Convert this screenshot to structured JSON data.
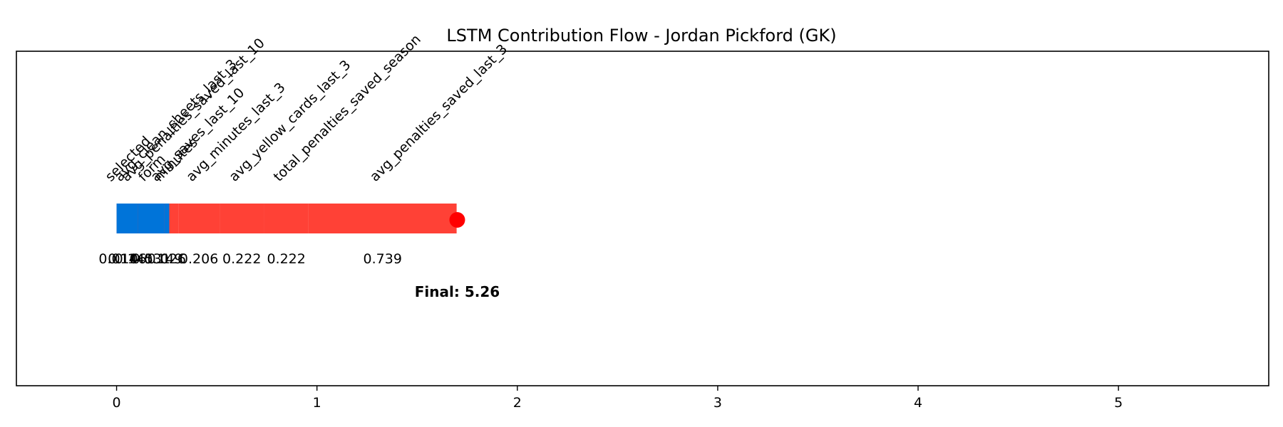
{
  "chart_data": {
    "type": "bar",
    "title": "LSTM Contribution Flow - Jordan Pickford (GK)",
    "xlim": [
      -0.5,
      5.75
    ],
    "x_ticks": [
      "0",
      "1",
      "2",
      "3",
      "4",
      "5"
    ],
    "xlabel": "",
    "ylabel": "",
    "grid": false,
    "segments": [
      {
        "feature": "avg_penalties_saved_last_3",
        "value": -0.739,
        "value_label": "0.739",
        "color": "#ff4136"
      },
      {
        "feature": "total_penalties_saved_season",
        "value": -0.222,
        "value_label": "0.222",
        "color": "#ff4136"
      },
      {
        "feature": "avg_yellow_cards_last_3",
        "value": -0.222,
        "value_label": "0.222",
        "color": "#ff4136"
      },
      {
        "feature": "avg_minutes_last_3",
        "value": -0.206,
        "value_label": "0.206",
        "color": "#ff4136"
      },
      {
        "feature": "avg_saves_last_10",
        "value": -0.149,
        "value_label": "0.149",
        "color": "#ff4136"
      },
      {
        "feature": "avg_penalties_saved_last_10",
        "value": -0.145,
        "value_label": "0.145",
        "color": "#ff4136"
      },
      {
        "feature": "selected",
        "value": -0.014,
        "value_label": "0.014",
        "color": "#ff4136"
      },
      {
        "feature": "avg_clean_sheets_last_3",
        "value": 0.106,
        "value_label": "0.106",
        "color": "#0074d9"
      },
      {
        "feature": "form",
        "value": 0.131,
        "value_label": "0.131",
        "color": "#0074d9"
      },
      {
        "feature": "minutes",
        "value": 0.026,
        "value_label": "0.026",
        "color": "#0074d9"
      }
    ],
    "marker": {
      "x": 1.7,
      "color": "#ff0000"
    },
    "final_label": "Final: 5.26"
  }
}
